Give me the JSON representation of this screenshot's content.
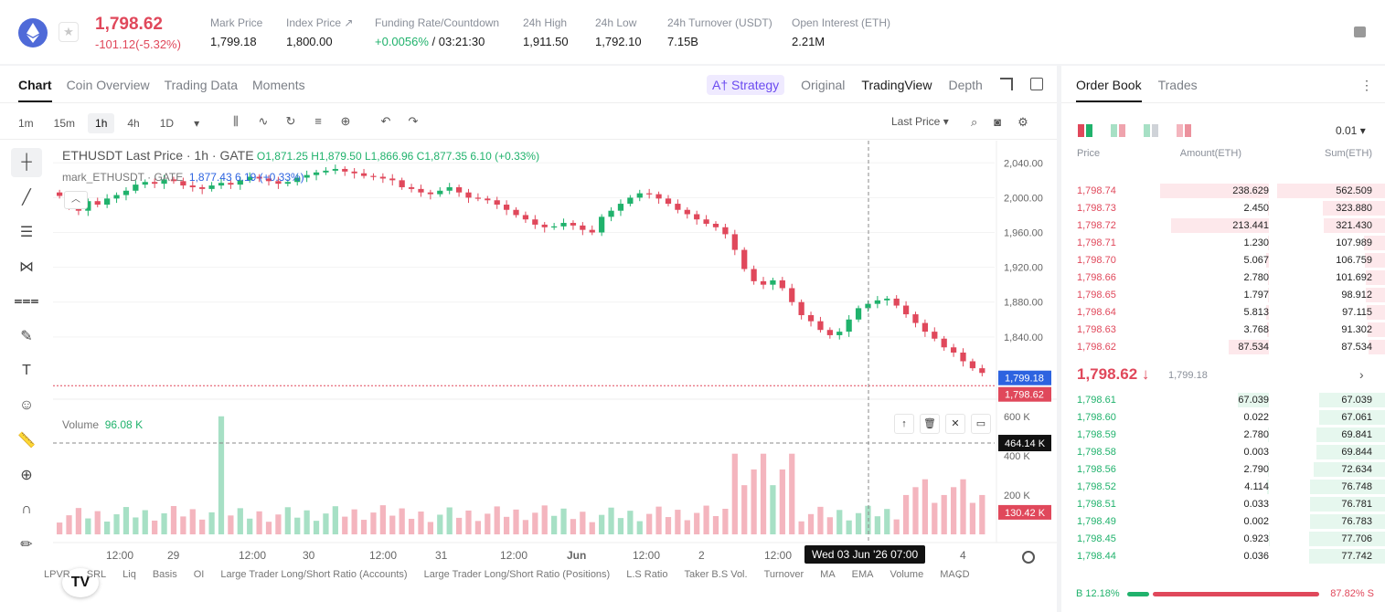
{
  "ticker": {
    "last_price": "1,798.62",
    "change": "-101.12(-5.32%)",
    "stats": [
      {
        "label": "Mark Price",
        "value": "1,799.18"
      },
      {
        "label": "Index Price ↗",
        "value": "1,800.00"
      },
      {
        "label": "Funding Rate/Countdown",
        "value_green": "+0.0056%",
        "value": " / 03:21:30"
      },
      {
        "label": "24h High",
        "value": "1,911.50"
      },
      {
        "label": "24h Low",
        "value": "1,792.10"
      },
      {
        "label": "24h Turnover (USDT)",
        "value": "7.15B"
      },
      {
        "label": "Open Interest (ETH)",
        "value": "2.21M"
      }
    ]
  },
  "chart_tabs": [
    "Chart",
    "Coin Overview",
    "Trading Data",
    "Moments"
  ],
  "view_tabs": {
    "strategy": "A† Strategy",
    "original": "Original",
    "tradingview": "TradingView",
    "depth": "Depth"
  },
  "intervals": [
    "1m",
    "15m",
    "1h",
    "4h",
    "1D"
  ],
  "interval_active": "1h",
  "toolbar_icons": [
    "indicator-icon",
    "compare-icon",
    "refresh-icon",
    "list-icon",
    "add-icon",
    "undo-icon",
    "redo-icon"
  ],
  "price_type_select": "Last Price",
  "legend": {
    "title": "ETHUSDT Last Price · 1h · GATE",
    "ohlc": " O1,871.25  H1,879.50  L1,866.96  C1,877.35  6.10 (+0.33%)",
    "mark_name": "mark_ETHUSDT · GATE",
    "mark_vals": "1,877.43  6.19 (+0.33%)",
    "volume_label": "Volume",
    "volume_value": "96.08 K"
  },
  "price_axis_labels": [
    "2,040.00",
    "2,000.00",
    "1,960.00",
    "1,920.00",
    "1,880.00",
    "1,840.00"
  ],
  "price_tags": {
    "mark": "1,799.18",
    "last": "1,798.62"
  },
  "volume_axis_labels": [
    "600 K",
    "400 K",
    "200 K"
  ],
  "volume_tags": {
    "crosshair": "464.14 K",
    "current": "130.42 K"
  },
  "time_axis_labels": [
    "12:00",
    "29",
    "12:00",
    "30",
    "12:00",
    "31",
    "12:00",
    "Jun",
    "12:00",
    "2",
    "12:00",
    "4"
  ],
  "crosshair_date": "Wed 03 Jun '26   07:00",
  "indicators": [
    "LPVR",
    "SRL",
    "Liq",
    "Basis",
    "OI",
    "Large Trader Long/Short Ratio (Accounts)",
    "Large Trader Long/Short Ratio (Positions)",
    "L.S Ratio",
    "Taker B.S Vol.",
    "Turnover",
    "MA",
    "EMA",
    "Volume",
    "MACD"
  ],
  "orderbook": {
    "tabs": [
      "Order Book",
      "Trades"
    ],
    "tick": "0.01 ▾",
    "headers": {
      "price": "Price",
      "amount": "Amount(ETH)",
      "sum": "Sum(ETH)"
    },
    "asks": [
      {
        "price": "1,798.74",
        "amount": "238.629",
        "sum": "562.509"
      },
      {
        "price": "1,798.73",
        "amount": "2.450",
        "sum": "323.880"
      },
      {
        "price": "1,798.72",
        "amount": "213.441",
        "sum": "321.430"
      },
      {
        "price": "1,798.71",
        "amount": "1.230",
        "sum": "107.989"
      },
      {
        "price": "1,798.70",
        "amount": "5.067",
        "sum": "106.759"
      },
      {
        "price": "1,798.66",
        "amount": "2.780",
        "sum": "101.692"
      },
      {
        "price": "1,798.65",
        "amount": "1.797",
        "sum": "98.912"
      },
      {
        "price": "1,798.64",
        "amount": "5.813",
        "sum": "97.115"
      },
      {
        "price": "1,798.63",
        "amount": "3.768",
        "sum": "91.302"
      },
      {
        "price": "1,798.62",
        "amount": "87.534",
        "sum": "87.534"
      }
    ],
    "mid_price": "1,798.62 ↓",
    "mid_mark": "1,799.18",
    "bids": [
      {
        "price": "1,798.61",
        "amount": "67.039",
        "sum": "67.039"
      },
      {
        "price": "1,798.60",
        "amount": "0.022",
        "sum": "67.061"
      },
      {
        "price": "1,798.59",
        "amount": "2.780",
        "sum": "69.841"
      },
      {
        "price": "1,798.58",
        "amount": "0.003",
        "sum": "69.844"
      },
      {
        "price": "1,798.56",
        "amount": "2.790",
        "sum": "72.634"
      },
      {
        "price": "1,798.52",
        "amount": "4.114",
        "sum": "76.748"
      },
      {
        "price": "1,798.51",
        "amount": "0.033",
        "sum": "76.781"
      },
      {
        "price": "1,798.49",
        "amount": "0.002",
        "sum": "76.783"
      },
      {
        "price": "1,798.45",
        "amount": "0.923",
        "sum": "77.706"
      },
      {
        "price": "1,798.44",
        "amount": "0.036",
        "sum": "77.742"
      }
    ],
    "buy_ratio": "B 12.18%",
    "sell_ratio": "87.82% S",
    "buy_fraction": 0.1218
  },
  "colors": {
    "up": "#20b26c",
    "down": "#e0485b",
    "accent": "#6b4bf0",
    "mark": "#2d63e0"
  },
  "chart_data": {
    "type": "candlestick",
    "ylim": [
      1780,
      2055
    ],
    "price_ticks": [
      2040,
      2000,
      1960,
      1920,
      1880,
      1840
    ],
    "mark_price": 1799.18,
    "last_price": 1798.62,
    "close_series": [
      2002,
      1990,
      1985,
      1996,
      1992,
      1999,
      2003,
      2008,
      2015,
      2018,
      2016,
      2021,
      2019,
      2014,
      2012,
      2010,
      2014,
      2017,
      2015,
      2020,
      2024,
      2022,
      2019,
      2016,
      2018,
      2023,
      2026,
      2029,
      2031,
      2033,
      2030,
      2028,
      2025,
      2024,
      2022,
      2020,
      2012,
      2010,
      2006,
      2004,
      2008,
      2012,
      2006,
      2000,
      1999,
      1997,
      1992,
      1986,
      1980,
      1975,
      1969,
      1966,
      1967,
      1971,
      1968,
      1963,
      1960,
      1978,
      1985,
      1993,
      2000,
      2005,
      2004,
      1999,
      1993,
      1986,
      1981,
      1975,
      1970,
      1966,
      1958,
      1940,
      1918,
      1904,
      1900,
      1905,
      1896,
      1880,
      1865,
      1858,
      1848,
      1842,
      1846,
      1860,
      1873,
      1878,
      1882,
      1884,
      1876,
      1866,
      1856,
      1846,
      1838,
      1828,
      1822,
      1812,
      1804,
      1798.62
    ],
    "volume_axis_ticks_k": [
      600,
      400,
      200
    ],
    "volume_crosshair_k": 464.14,
    "volume_last_k": 130.42
  }
}
